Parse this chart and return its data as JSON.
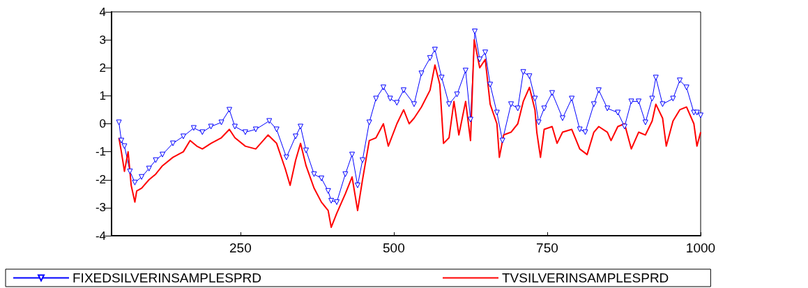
{
  "chart_data": {
    "type": "line",
    "xlim": [
      40,
      1000
    ],
    "xticks": [
      250,
      500,
      750,
      1000
    ],
    "ylim": [
      -4,
      4
    ],
    "yticks": [
      -4,
      -3,
      -2,
      -1,
      0,
      1,
      2,
      3,
      4
    ],
    "grid": false,
    "legend": "bottom",
    "series": [
      {
        "name": "FIXEDSILVERINSAMPLESPRD",
        "color": "#0000ff",
        "marker": "triangle-down",
        "x": [
          52,
          56,
          61,
          70,
          78,
          89,
          101,
          112,
          123,
          140,
          157,
          174,
          188,
          202,
          219,
          232,
          241,
          258,
          275,
          297,
          309,
          325,
          340,
          348,
          357,
          370,
          382,
          393,
          398,
          407,
          421,
          432,
          441,
          449,
          460,
          471,
          483,
          494,
          505,
          516,
          533,
          545,
          559,
          567,
          578,
          590,
          603,
          617,
          625,
          632,
          640,
          649,
          657,
          668,
          677,
          691,
          702,
          711,
          721,
          730,
          736,
          745,
          758,
          775,
          790,
          803,
          812,
          826,
          834,
          848,
          865,
          876,
          887,
          899,
          910,
          921,
          927,
          938,
          955,
          966,
          977,
          989,
          994,
          1000
        ],
        "values": [
          0.05,
          -0.6,
          -0.8,
          -1.7,
          -2.1,
          -1.9,
          -1.6,
          -1.3,
          -1.1,
          -0.7,
          -0.45,
          -0.15,
          -0.3,
          -0.1,
          0.05,
          0.5,
          -0.1,
          -0.3,
          -0.2,
          0.1,
          -0.2,
          -1.2,
          -0.45,
          -0.1,
          -0.95,
          -1.8,
          -1.95,
          -2.4,
          -2.75,
          -2.8,
          -1.8,
          -1.1,
          -2.2,
          -1.3,
          0.05,
          0.9,
          1.3,
          0.9,
          0.75,
          1.2,
          0.7,
          1.8,
          2.35,
          2.65,
          1.65,
          0.7,
          1.05,
          1.9,
          0.15,
          3.3,
          2.3,
          2.55,
          1.4,
          0.4,
          -0.6,
          0.7,
          0.55,
          1.85,
          1.7,
          0.9,
          0.05,
          0.55,
          1.1,
          0.2,
          0.9,
          -0.2,
          -0.3,
          0.7,
          1.2,
          0.55,
          0.4,
          -0.1,
          0.8,
          0.8,
          0.05,
          0.9,
          1.65,
          0.7,
          0.9,
          1.55,
          1.3,
          0.4,
          0.4,
          0.3
        ]
      },
      {
        "name": "TVSILVERINSAMPLESPRD",
        "color": "#ff0000",
        "marker": "none",
        "x": [
          52,
          56,
          61,
          67,
          72,
          78,
          81,
          89,
          101,
          112,
          123,
          140,
          157,
          168,
          179,
          188,
          202,
          219,
          232,
          241,
          258,
          275,
          295,
          309,
          323,
          331,
          340,
          348,
          357,
          370,
          382,
          393,
          398,
          407,
          421,
          432,
          441,
          449,
          460,
          471,
          483,
          491,
          505,
          516,
          525,
          533,
          545,
          559,
          567,
          575,
          581,
          590,
          598,
          606,
          617,
          625,
          631,
          640,
          649,
          657,
          668,
          672,
          679,
          691,
          702,
          711,
          721,
          730,
          733,
          739,
          745,
          758,
          766,
          775,
          790,
          803,
          815,
          826,
          834,
          848,
          854,
          865,
          876,
          887,
          899,
          910,
          921,
          927,
          938,
          944,
          955,
          966,
          977,
          989,
          994,
          1000
        ],
        "values": [
          -0.5,
          -1.0,
          -1.7,
          -1.0,
          -2.2,
          -2.8,
          -2.4,
          -2.3,
          -2.0,
          -1.8,
          -1.5,
          -1.2,
          -1.0,
          -0.6,
          -0.8,
          -0.9,
          -0.7,
          -0.5,
          -0.2,
          -0.5,
          -0.8,
          -0.9,
          -0.4,
          -0.7,
          -1.6,
          -2.2,
          -1.3,
          -0.7,
          -1.5,
          -2.3,
          -2.8,
          -3.1,
          -3.7,
          -3.2,
          -2.5,
          -1.9,
          -3.1,
          -2.0,
          -0.6,
          -0.5,
          0.0,
          -0.8,
          0.0,
          0.5,
          0.0,
          0.2,
          0.6,
          1.2,
          2.1,
          1.4,
          -0.7,
          -0.5,
          0.8,
          -0.4,
          0.8,
          -0.6,
          3.0,
          2.0,
          2.3,
          0.7,
          0.0,
          -1.2,
          -0.4,
          -0.3,
          0.0,
          0.8,
          1.3,
          0.5,
          -0.3,
          -1.2,
          -0.2,
          -0.1,
          -0.7,
          -0.3,
          -0.2,
          -0.9,
          -1.1,
          -0.3,
          -0.1,
          -0.3,
          -0.6,
          -0.1,
          0.0,
          -0.9,
          -0.3,
          -0.4,
          0.1,
          0.7,
          0.2,
          -0.8,
          0.1,
          0.5,
          0.6,
          0.0,
          -0.8,
          -0.3
        ]
      }
    ]
  }
}
